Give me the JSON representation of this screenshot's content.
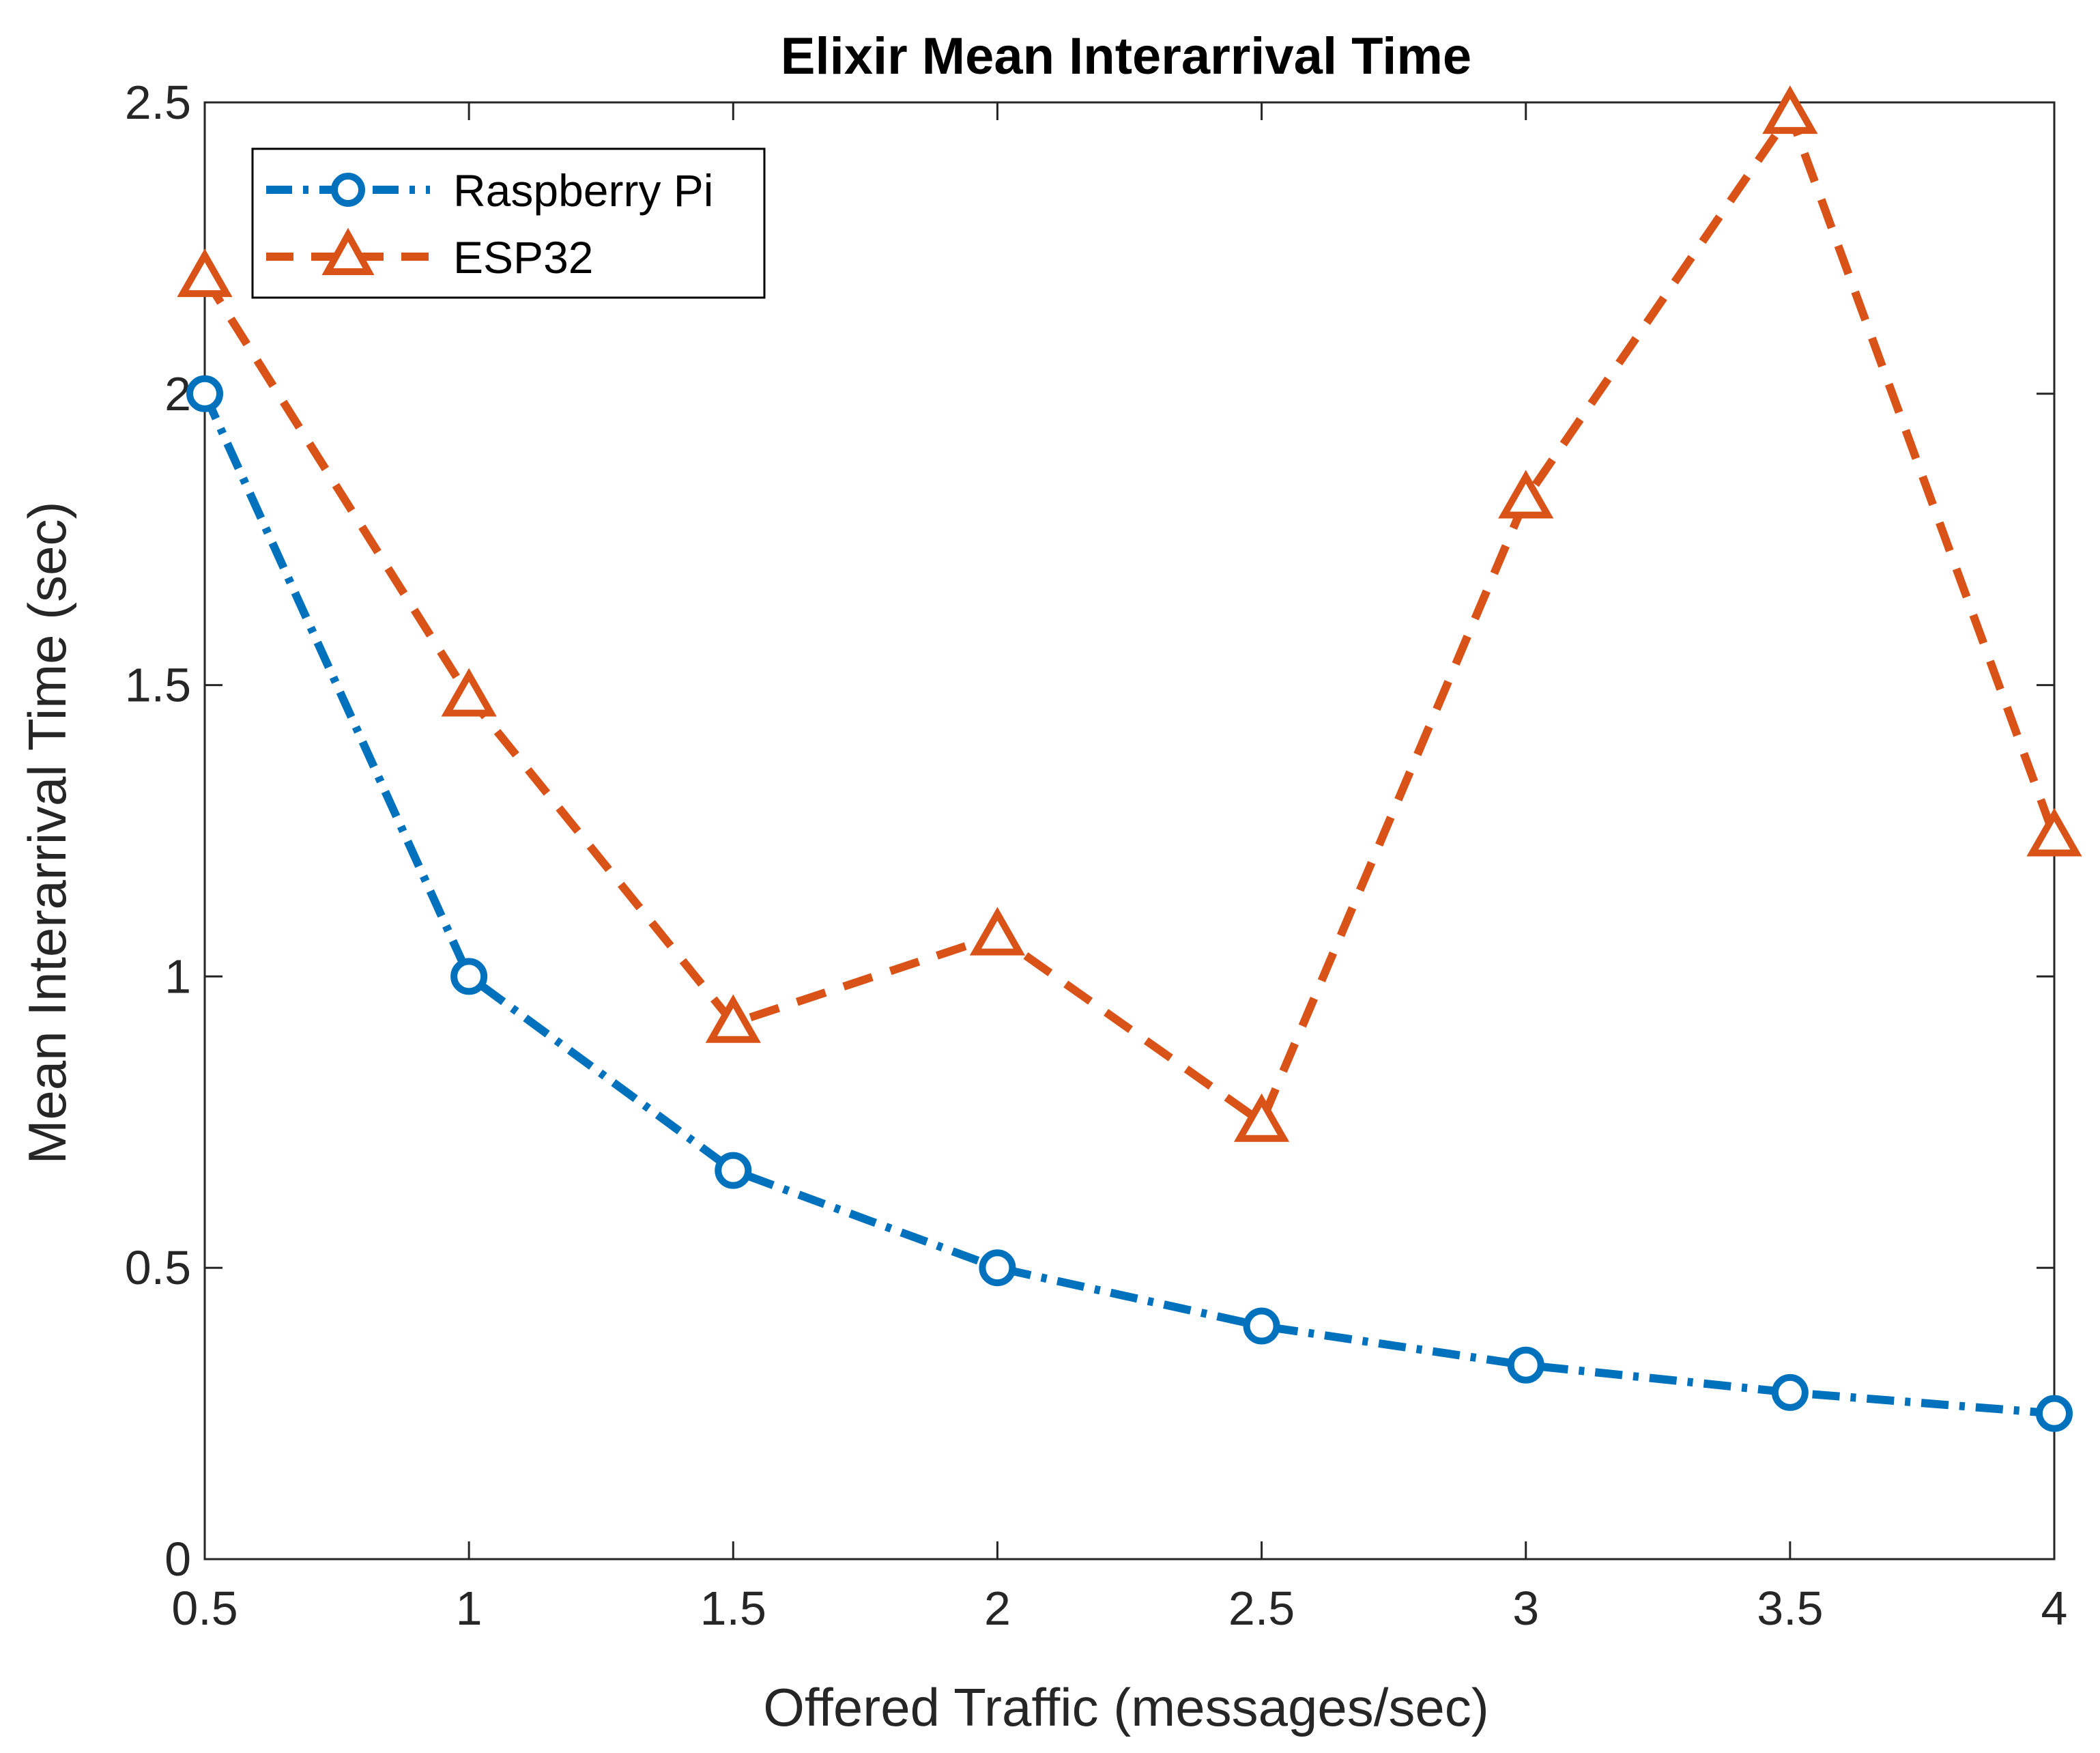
{
  "chart_data": {
    "type": "line",
    "title": "Elixir Mean Interarrival Time",
    "xlabel": "Offered Traffic (messages/sec)",
    "ylabel": "Mean Interarrival Time (sec)",
    "xlim": [
      0.5,
      4
    ],
    "ylim": [
      0,
      2.5
    ],
    "xticks": [
      0.5,
      1,
      1.5,
      2,
      2.5,
      3,
      3.5,
      4
    ],
    "yticks": [
      0,
      0.5,
      1,
      1.5,
      2,
      2.5
    ],
    "xtick_labels": [
      "0.5",
      "1",
      "1.5",
      "2",
      "2.5",
      "3",
      "3.5",
      "4"
    ],
    "ytick_labels": [
      "0",
      "0.5",
      "1",
      "1.5",
      "2",
      "2.5"
    ],
    "grid": false,
    "legend_position": "top-left",
    "x": [
      0.5,
      1,
      1.5,
      2,
      2.5,
      3,
      3.5,
      4
    ],
    "series": [
      {
        "name": "Raspberry Pi",
        "color": "#0072BD",
        "marker": "circle",
        "line_style": "dash-dot",
        "values": [
          2.0,
          1.0,
          0.667,
          0.5,
          0.4,
          0.333,
          0.286,
          0.25
        ]
      },
      {
        "name": "ESP32",
        "color": "#D95319",
        "marker": "triangle",
        "line_style": "dashed",
        "values": [
          2.2,
          1.48,
          0.92,
          1.07,
          0.75,
          1.82,
          2.48,
          1.24
        ]
      }
    ]
  }
}
